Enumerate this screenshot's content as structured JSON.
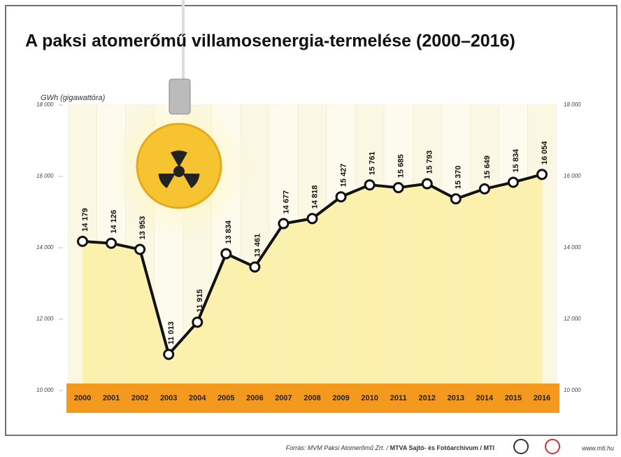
{
  "chart_data": {
    "type": "line",
    "title": "A paksi atomerőmű villamosenergia-termelése (2000–2016)",
    "y_label": "GWh (gigawattóra)",
    "categories": [
      "2000",
      "2001",
      "2002",
      "2003",
      "2004",
      "2005",
      "2006",
      "2007",
      "2008",
      "2009",
      "2010",
      "2011",
      "2012",
      "2013",
      "2014",
      "2015",
      "2016"
    ],
    "values": [
      14179,
      14126,
      13953,
      11013,
      11915,
      13834,
      13461,
      14677,
      14818,
      15427,
      15761,
      15685,
      15793,
      15370,
      15649,
      15834,
      16054
    ],
    "value_labels": [
      "14 179",
      "14 126",
      "13 953",
      "11 013",
      "11 915",
      "13 834",
      "13 461",
      "14 677",
      "14 818",
      "15 427",
      "15 761",
      "15 685",
      "15 793",
      "15 370",
      "15 649",
      "15 834",
      "16 054"
    ],
    "color": "#111111",
    "area_color": "#fbf0a6",
    "band_color": "#f39a1e",
    "ylim": [
      10000,
      18000
    ],
    "yticks": [
      {
        "value": 10000,
        "label": "10 000"
      },
      {
        "value": 12000,
        "label": "12 000"
      },
      {
        "value": 14000,
        "label": "14 000"
      },
      {
        "value": 16000,
        "label": "16 000"
      },
      {
        "value": 18000,
        "label": "18 000"
      }
    ],
    "source": "Forrás: MVM Paksi Atomerőmű Zrt. /",
    "source_agency": "MTVA Sajtó- és Fotóarchivum / MTI",
    "url": "www.mti.hu"
  }
}
